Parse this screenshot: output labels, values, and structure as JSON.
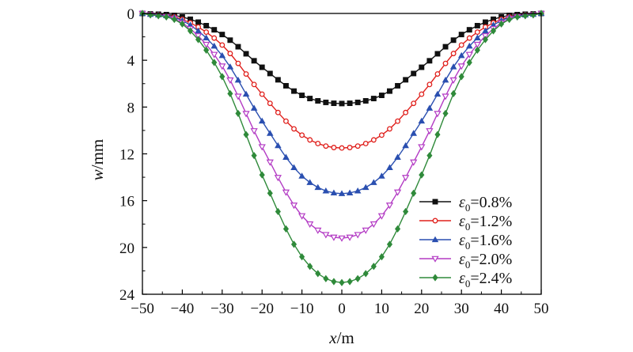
{
  "chart_data": {
    "type": "line",
    "title": "",
    "xlabel": {
      "var": "x",
      "unit": "/m"
    },
    "ylabel": {
      "var": "w",
      "unit": "/mm"
    },
    "xlim": [
      -50,
      50
    ],
    "ylim": [
      0,
      24
    ],
    "y_inverted": true,
    "xticks": [
      "−50",
      "−40",
      "−30",
      "−20",
      "−10",
      "0",
      "10",
      "20",
      "30",
      "40",
      "50"
    ],
    "yticks": [
      "0",
      "4",
      "8",
      "12",
      "16",
      "20",
      "24"
    ],
    "grid": false,
    "legend_position": "bottom-right",
    "x": [
      -50,
      -40,
      -30,
      -20,
      -10,
      0,
      10,
      20,
      30,
      40,
      50
    ],
    "sample_step": 2,
    "series": [
      {
        "label": {
          "sym": "ε",
          "sub": "0",
          "rest": "=0.8%"
        },
        "color": "#111111",
        "marker": "square",
        "values": [
          0.0,
          0.3,
          1.8,
          4.6,
          7.0,
          7.7,
          7.0,
          4.6,
          1.8,
          0.3,
          0.0
        ]
      },
      {
        "label": {
          "sym": "ε",
          "sub": "0",
          "rest": "=1.2%"
        },
        "color": "#e0201c",
        "marker": "circle-open",
        "values": [
          0.0,
          0.5,
          2.7,
          6.9,
          10.4,
          11.5,
          10.4,
          6.9,
          2.7,
          0.5,
          0.0
        ]
      },
      {
        "label": {
          "sym": "ε",
          "sub": "0",
          "rest": "=1.6%"
        },
        "color": "#2a4fb0",
        "marker": "triangle-up",
        "values": [
          0.0,
          0.6,
          3.6,
          9.2,
          13.9,
          15.4,
          13.9,
          9.2,
          3.6,
          0.6,
          0.0
        ]
      },
      {
        "label": {
          "sym": "ε",
          "sub": "0",
          "rest": "=2.0%"
        },
        "color": "#b33bc4",
        "marker": "triangle-down-open",
        "values": [
          0.0,
          0.8,
          4.5,
          11.4,
          17.3,
          19.2,
          17.3,
          11.4,
          4.5,
          0.8,
          0.0
        ]
      },
      {
        "label": {
          "sym": "ε",
          "sub": "0",
          "rest": "=2.4%"
        },
        "color": "#2f8a3a",
        "marker": "diamond",
        "values": [
          0.0,
          0.9,
          5.4,
          13.8,
          20.8,
          23.0,
          20.8,
          13.8,
          5.4,
          0.9,
          0.0
        ]
      }
    ]
  }
}
